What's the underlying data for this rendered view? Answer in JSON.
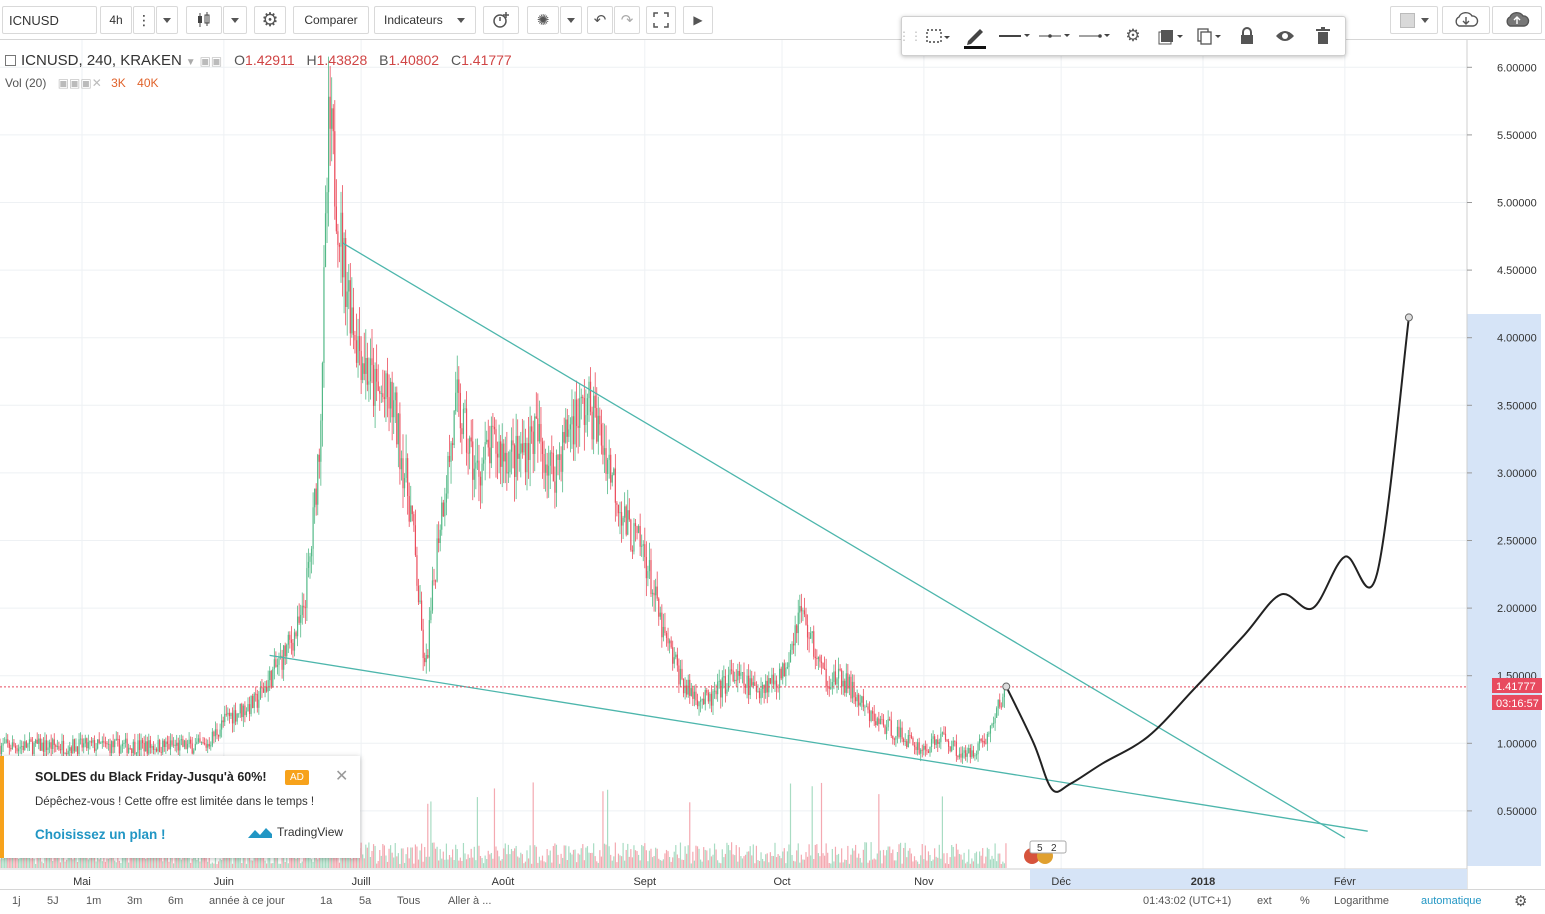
{
  "toolbar": {
    "symbol": "ICNUSD",
    "interval": "4h",
    "compare_label": "Comparer",
    "indicators_label": "Indicateurs"
  },
  "legend": {
    "title": "ICNUSD, 240, KRAKEN",
    "open_label": "O",
    "open": "1.42911",
    "high_label": "H",
    "high": "1.43828",
    "low_label": "B",
    "low": "1.40802",
    "close_label": "C",
    "close": "1.41777",
    "vol_label": "Vol (20)",
    "vol_a": "3K",
    "vol_b": "40K"
  },
  "colors": {
    "up": "#53b987",
    "down": "#eb4d5c",
    "trend": "#4db6ac",
    "price_label_bg": "#e84a5f",
    "axis_highlight": "#d6e4f7",
    "ad_accent": "#f7a21b",
    "link": "#2196c4"
  },
  "price_axis": {
    "ticks": [
      "6.00000",
      "5.50000",
      "5.00000",
      "4.50000",
      "4.00000",
      "3.50000",
      "3.00000",
      "2.50000",
      "2.00000",
      "1.50000",
      "1.00000",
      "0.50000"
    ],
    "last_price": "1.41777",
    "countdown": "03:16:57"
  },
  "time_axis": {
    "labels": [
      "Mai",
      "Juin",
      "Juill",
      "Août",
      "Sept",
      "Oct",
      "Nov",
      "Déc",
      "2018",
      "Févr"
    ]
  },
  "events_badge": {
    "a": "5",
    "b": "2"
  },
  "ad": {
    "title": "SOLDES du Black Friday-Jusqu'à 60%!",
    "badge": "AD",
    "body": "Dépêchez-vous ! Cette offre est limitée dans le temps !",
    "cta": "Choisissez un plan !",
    "brand": "TradingView"
  },
  "bottom_bar": {
    "ranges": [
      "1j",
      "5J",
      "1m",
      "3m",
      "6m",
      "année à ce jour",
      "1a",
      "5a",
      "Tous"
    ],
    "goto": "Aller à ...",
    "clock": "01:43:02 (UTC+1)",
    "ext": "ext",
    "percent": "%",
    "log": "Logarithme",
    "auto": "automatique"
  },
  "icons": [
    "settings-icon",
    "undo-icon",
    "redo-icon",
    "fullscreen-icon",
    "play-icon",
    "alert-icon",
    "lightbulb-icon",
    "candles-icon",
    "lock-icon",
    "eye-icon",
    "trash-icon",
    "cloud-download-icon",
    "cloud-upload-icon",
    "pencil-icon"
  ],
  "chart_data": {
    "type": "line",
    "title": "ICNUSD, 240, KRAKEN",
    "price_series_anchors": {
      "x": [
        "2017-05-28",
        "2017-06-02",
        "2017-06-08",
        "2017-06-14",
        "2017-06-18",
        "2017-06-20",
        "2017-06-22",
        "2017-06-24",
        "2017-06-27",
        "2017-06-30",
        "2017-07-04",
        "2017-07-08",
        "2017-07-12",
        "2017-07-15",
        "2017-07-18",
        "2017-07-22",
        "2017-07-26",
        "2017-07-30",
        "2017-08-04",
        "2017-08-08",
        "2017-08-12",
        "2017-08-16",
        "2017-08-20",
        "2017-08-24",
        "2017-08-28",
        "2017-09-01",
        "2017-09-05",
        "2017-09-10",
        "2017-09-15",
        "2017-09-20",
        "2017-09-25",
        "2017-10-01",
        "2017-10-05",
        "2017-10-10",
        "2017-10-15",
        "2017-10-20",
        "2017-10-25",
        "2017-11-01",
        "2017-11-05",
        "2017-11-10",
        "2017-11-15",
        "2017-11-19"
      ],
      "y": [
        0.98,
        1.2,
        1.3,
        1.65,
        1.9,
        2.4,
        3.3,
        5.6,
        4.6,
        4.0,
        3.6,
        3.5,
        2.7,
        1.5,
        2.6,
        3.5,
        3.0,
        3.2,
        3.1,
        3.3,
        3.0,
        3.4,
        3.5,
        3.1,
        2.6,
        2.4,
        1.8,
        1.4,
        1.3,
        1.5,
        1.4,
        1.5,
        2.0,
        1.5,
        1.45,
        1.2,
        1.1,
        0.95,
        1.05,
        0.9,
        1.05,
        1.42
      ]
    },
    "projection": {
      "x": [
        "2017-11-19",
        "2017-11-25",
        "2017-11-29",
        "2017-12-03",
        "2017-12-10",
        "2017-12-20",
        "2017-12-30",
        "2018-01-10",
        "2018-01-18",
        "2018-01-25",
        "2018-02-01",
        "2018-02-08",
        "2018-02-15"
      ],
      "y": [
        1.42,
        1.0,
        0.66,
        0.7,
        0.85,
        1.05,
        1.4,
        1.8,
        2.1,
        2.0,
        2.38,
        2.25,
        4.15
      ]
    },
    "trendlines": [
      {
        "from": [
          "2017-06-27",
          4.7
        ],
        "to": [
          "2018-02-01",
          0.3
        ]
      },
      {
        "from": [
          "2017-06-11",
          1.65
        ],
        "to": [
          "2018-02-06",
          0.35
        ]
      }
    ],
    "last_price_line": 1.41777,
    "ylim": [
      0.0,
      6.2
    ],
    "grid": true
  }
}
